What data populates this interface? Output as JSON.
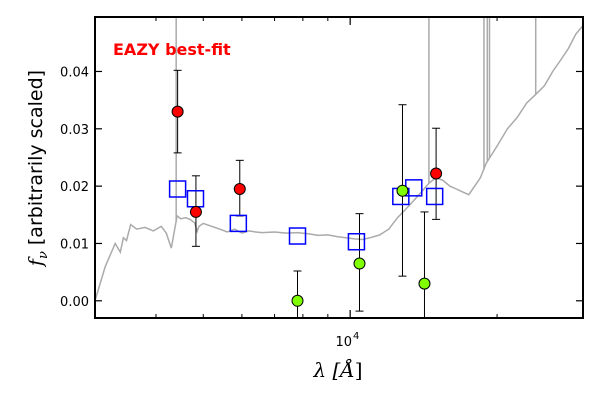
{
  "chart_data": {
    "type": "scatter",
    "title": "",
    "annotation": "EAZY best-fit",
    "annotation_color": "#ff0000",
    "xlabel": "λ [Å]",
    "ylabel": "f_ν [arbitrarily scaled]",
    "ylabel_var": "f",
    "ylabel_sub": "ν",
    "ylabel_rest": " [arbitrarily scaled]",
    "xlabel_var": "λ [",
    "xlabel_unit": "Å",
    "xlabel_close": "]",
    "x_scale": "log",
    "xlim": [
      3000,
      30000
    ],
    "ylim": [
      -0.003,
      0.0495
    ],
    "y_ticks": [
      0.0,
      0.01,
      0.02,
      0.03,
      0.04
    ],
    "y_tick_labels": [
      "0.00",
      "0.01",
      "0.02",
      "0.03",
      "0.04"
    ],
    "x_major_tick_label": "10",
    "x_major_tick_exp": "4",
    "grid": false,
    "colors": {
      "template": "#aaaaaa",
      "model": "#0000ff",
      "red": "#ff0000",
      "green": "#7fff00",
      "errorbar": "#000000"
    },
    "template_spectrum": {
      "x": [
        3000,
        3150,
        3300,
        3380,
        3430,
        3480,
        3550,
        3650,
        3800,
        3950,
        4100,
        4200,
        4300,
        4420,
        4500,
        4600,
        4700,
        4800,
        4860,
        4900,
        5000,
        5200,
        5400,
        5600,
        5800,
        6000,
        6200,
        6400,
        6600,
        7000,
        7400,
        7800,
        8200,
        8600,
        9000,
        9400,
        9800,
        10200,
        10600,
        11000,
        11500,
        12000,
        12500,
        13000,
        13500,
        14000,
        14500,
        15000,
        15500,
        16000,
        16500,
        17000,
        17500,
        18000,
        18500,
        19000,
        19500,
        20000,
        21000,
        22000,
        23000,
        24000,
        25000,
        26000,
        27000,
        28000,
        29000,
        30000
      ],
      "y": [
        0.0,
        0.006,
        0.01,
        0.0085,
        0.011,
        0.0105,
        0.0133,
        0.0125,
        0.0128,
        0.0122,
        0.013,
        0.0118,
        0.0092,
        0.0148,
        0.0143,
        0.0145,
        0.0142,
        0.0136,
        0.0121,
        0.013,
        0.0135,
        0.013,
        0.0125,
        0.012,
        0.0125,
        0.0118,
        0.0122,
        0.012,
        0.0119,
        0.012,
        0.0118,
        0.0119,
        0.0117,
        0.0114,
        0.0115,
        0.0112,
        0.011,
        0.0108,
        0.0107,
        0.011,
        0.0115,
        0.0125,
        0.0145,
        0.016,
        0.0175,
        0.019,
        0.0205,
        0.0215,
        0.021,
        0.02,
        0.0195,
        0.019,
        0.0185,
        0.02,
        0.0215,
        0.024,
        0.0255,
        0.027,
        0.03,
        0.032,
        0.0345,
        0.036,
        0.0375,
        0.04,
        0.042,
        0.044,
        0.0465,
        0.048
      ]
    },
    "emission_lines": [
      {
        "x": 4400,
        "y": 0.0495
      },
      {
        "x": 14500,
        "y": 0.0495
      },
      {
        "x": 18800,
        "y": 0.0495
      },
      {
        "x": 19100,
        "y": 0.0495
      },
      {
        "x": 19300,
        "y": 0.0495
      },
      {
        "x": 24000,
        "y": 0.0495
      }
    ],
    "model_points": {
      "x": [
        4430,
        4820,
        5900,
        7800,
        10300,
        12700,
        13500,
        14900
      ],
      "y": [
        0.0195,
        0.0178,
        0.0135,
        0.0113,
        0.0103,
        0.0182,
        0.0197,
        0.0182
      ]
    },
    "observed_points": [
      {
        "x": 4430,
        "y": 0.033,
        "err_lo": 0.0258,
        "err_hi": 0.0402,
        "color": "red"
      },
      {
        "x": 4830,
        "y": 0.0155,
        "err_lo": 0.0095,
        "err_hi": 0.0218,
        "color": "red"
      },
      {
        "x": 5940,
        "y": 0.0195,
        "err_lo": 0.0148,
        "err_hi": 0.0245,
        "color": "red"
      },
      {
        "x": 7800,
        "y": 0.0,
        "err_lo": -0.0045,
        "err_hi": 0.0052,
        "color": "green"
      },
      {
        "x": 10450,
        "y": 0.0065,
        "err_lo": -0.0018,
        "err_hi": 0.0152,
        "color": "green"
      },
      {
        "x": 12800,
        "y": 0.0192,
        "err_lo": 0.0043,
        "err_hi": 0.0342,
        "color": "green"
      },
      {
        "x": 14200,
        "y": 0.003,
        "err_lo": -0.0095,
        "err_hi": 0.0155,
        "color": "green"
      },
      {
        "x": 15000,
        "y": 0.0222,
        "err_lo": 0.0142,
        "err_hi": 0.0301,
        "color": "red"
      }
    ]
  }
}
